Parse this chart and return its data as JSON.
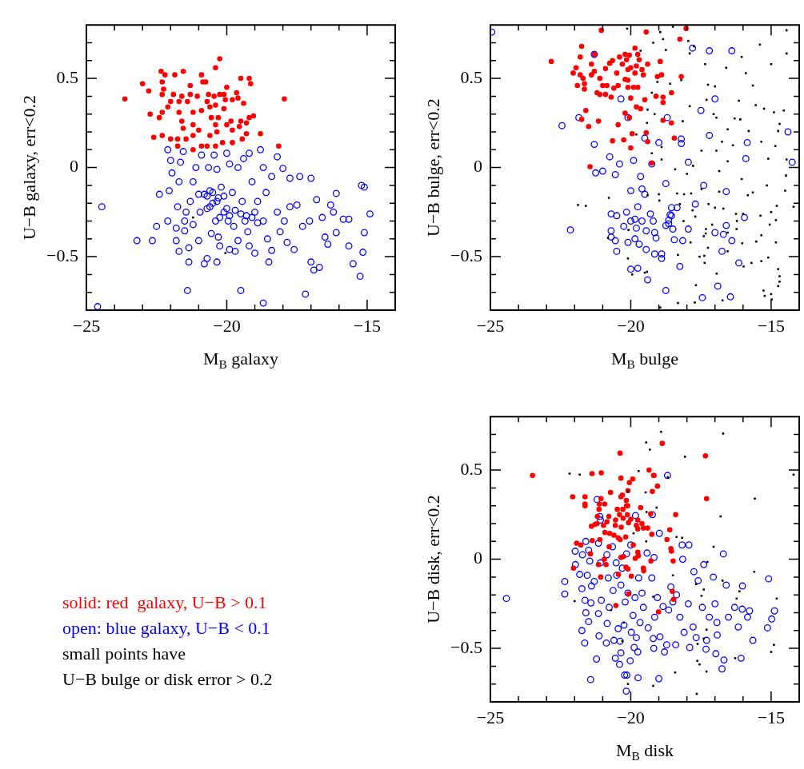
{
  "chart_data": [
    {
      "type": "scatter",
      "xlabel": "M$_{B}$ galaxy",
      "ylabel": "U−B galaxy, err<0.2",
      "xlim": [
        -25,
        -14
      ],
      "ylim": [
        -0.8,
        0.8
      ],
      "xticks": [
        {
          "value": -25,
          "label": "−25"
        },
        {
          "value": -24,
          "label": null
        },
        {
          "value": -23,
          "label": null
        },
        {
          "value": -22,
          "label": null
        },
        {
          "value": -21,
          "label": null
        },
        {
          "value": -20,
          "label": "−20"
        },
        {
          "value": -19,
          "label": null
        },
        {
          "value": -18,
          "label": null
        },
        {
          "value": -17,
          "label": null
        },
        {
          "value": -16,
          "label": null
        },
        {
          "value": -15,
          "label": "−15"
        }
      ],
      "yticks": [
        {
          "value": -0.7,
          "label": null
        },
        {
          "value": -0.6,
          "label": null
        },
        {
          "value": -0.5,
          "label": "−0.5"
        },
        {
          "value": -0.4,
          "label": null
        },
        {
          "value": -0.3,
          "label": null
        },
        {
          "value": -0.2,
          "label": null
        },
        {
          "value": -0.1,
          "label": null
        },
        {
          "value": 0,
          "label": "0"
        },
        {
          "value": 0.1,
          "label": null
        },
        {
          "value": 0.2,
          "label": null
        },
        {
          "value": 0.3,
          "label": null
        },
        {
          "value": 0.4,
          "label": null
        },
        {
          "value": 0.5,
          "label": "0.5"
        },
        {
          "value": 0.6,
          "label": null
        },
        {
          "value": 0.7,
          "label": null
        }
      ],
      "grid": false,
      "legend": false,
      "series": [
        {
          "color": "#ff0000",
          "marker": "circle",
          "x": [
            -23.63,
            -23.0,
            -22.78,
            -22.34,
            -22.2,
            -22.3,
            -22.25,
            -22.3,
            -22.73,
            -22.6,
            -22.3,
            -22.4,
            -22.3,
            -22.1,
            -22.0,
            -22.0,
            -21.85,
            -21.9,
            -21.75,
            -21.75,
            -21.55,
            -21.6,
            -21.7,
            -21.7,
            -21.6,
            -21.55,
            -21.45,
            -21.3,
            -21.3,
            -21.4,
            -21.2,
            -21.2,
            -21.2,
            -21.2,
            -20.9,
            -20.85,
            -21.05,
            -20.9,
            -21.0,
            -20.9,
            -20.75,
            -20.65,
            -20.7,
            -20.6,
            -20.55,
            -20.6,
            -20.7,
            -20.45,
            -20.4,
            -20.4,
            -20.25,
            -20.25,
            -20.3,
            -20.4,
            -20.35,
            -20.4,
            -20.1,
            -20.1,
            -20.0,
            -20.05,
            -20.0,
            -20.15,
            -19.85,
            -19.8,
            -19.8,
            -19.8,
            -19.65,
            -19.6,
            -19.55,
            -19.5,
            -19.5,
            -19.4,
            -19.45,
            -19.3,
            -19.3,
            -19.2,
            -19.2,
            -19.15,
            -19.05,
            -18.8,
            -17.95,
            -18.15
          ],
          "values": [
            0.385,
            0.47,
            0.43,
            0.54,
            0.52,
            0.48,
            0.44,
            0.41,
            0.3,
            0.17,
            0.18,
            0.28,
            0.31,
            0.34,
            0.37,
            0.16,
            0.52,
            0.41,
            0.16,
            0.12,
            0.54,
            0.4,
            0.37,
            0.31,
            0.26,
            0.22,
            0.16,
            0.46,
            0.41,
            0.37,
            0.31,
            0.24,
            0.18,
            0.1,
            0.52,
            0.48,
            0.4,
            0.32,
            0.21,
            0.12,
            0.48,
            0.41,
            0.37,
            0.34,
            0.28,
            0.18,
            0.12,
            0.4,
            0.35,
            0.56,
            0.61,
            0.41,
            0.28,
            0.24,
            0.2,
            0.12,
            0.33,
            0.41,
            0.45,
            0.38,
            0.24,
            0.14,
            0.26,
            0.38,
            0.21,
            0.14,
            0.42,
            0.39,
            0.23,
            0.5,
            0.26,
            0.36,
            0.16,
            0.19,
            0.25,
            0.28,
            0.5,
            0.47,
            0.29,
            0.19,
            0.385,
            0.12
          ]
        },
        {
          "color": "#0000ff",
          "marker": "open circle",
          "x": [
            -24.6,
            -24.45,
            -23.2,
            -22.65,
            -22.5,
            -22.4,
            -22.1,
            -22.1,
            -22.05,
            -22.0,
            -21.95,
            -21.8,
            -21.8,
            -21.7,
            -21.75,
            -21.7,
            -21.65,
            -21.55,
            -21.5,
            -21.5,
            -21.45,
            -21.4,
            -21.35,
            -21.35,
            -21.3,
            -21.2,
            -21.2,
            -21.1,
            -21.0,
            -21.0,
            -20.95,
            -20.9,
            -20.8,
            -20.7,
            -20.7,
            -20.65,
            -20.6,
            -20.55,
            -20.5,
            -20.45,
            -20.35,
            -20.35,
            -20.35,
            -20.3,
            -20.25,
            -20.25,
            -20.2,
            -20.1,
            -20.0,
            -20.0,
            -19.95,
            -19.9,
            -19.9,
            -19.8,
            -19.75,
            -19.7,
            -19.7,
            -19.6,
            -19.6,
            -19.5,
            -19.45,
            -19.4,
            -19.35,
            -19.25,
            -19.2,
            -19.2,
            -19.1,
            -19.0,
            -19.0,
            -18.9,
            -18.8,
            -18.7,
            -18.7,
            -18.7,
            -18.6,
            -18.55,
            -18.5,
            -18.4,
            -18.4,
            -18.2,
            -18.2,
            -18.1,
            -18.0,
            -17.95,
            -17.85,
            -17.75,
            -17.75,
            -17.6,
            -17.5,
            -17.4,
            -17.3,
            -17.2,
            -17.05,
            -17.0,
            -17.0,
            -16.9,
            -16.8,
            -16.7,
            -16.6,
            -16.5,
            -16.4,
            -16.3,
            -16.2,
            -16.1,
            -16.1,
            -15.85,
            -15.65,
            -15.65,
            -15.5,
            -15.25,
            -15.2,
            -15.1,
            -15.15,
            -15.1,
            -14.9,
            -20.8,
            -20.6,
            -20.5,
            -20.3,
            -20.1,
            -19.9,
            -20.7,
            -20.4,
            -19.5,
            -19.3,
            -19.1,
            -18.9
          ],
          "values": [
            -0.78,
            -0.22,
            -0.41,
            -0.41,
            -0.33,
            -0.15,
            -0.3,
            0.1,
            -0.13,
            0.04,
            -0.03,
            -0.34,
            -0.41,
            -0.47,
            -0.22,
            -0.08,
            0.03,
            0.09,
            -0.3,
            -0.355,
            -0.25,
            -0.69,
            -0.53,
            -0.45,
            -0.19,
            -0.08,
            -0.32,
            0.0,
            -0.41,
            -0.15,
            -0.25,
            0.07,
            -0.54,
            -0.16,
            -0.51,
            0.0,
            -0.22,
            -0.37,
            -0.14,
            0.07,
            -0.01,
            -0.19,
            -0.53,
            -0.39,
            -0.28,
            -0.44,
            -0.11,
            -0.16,
            0.08,
            -0.23,
            -0.3,
            -0.46,
            0.02,
            -0.14,
            -0.33,
            -0.24,
            -0.47,
            0.0,
            -0.41,
            -0.69,
            -0.19,
            0.05,
            -0.3,
            -0.36,
            0.08,
            -0.44,
            -0.08,
            -0.48,
            -0.25,
            -0.19,
            0.1,
            -0.76,
            -0.3,
            0.0,
            -0.14,
            -0.4,
            -0.53,
            -0.05,
            -0.465,
            -0.25,
            0.06,
            -0.36,
            -0.005,
            -0.3,
            -0.42,
            -0.22,
            -0.06,
            -0.46,
            -0.21,
            -0.05,
            -0.33,
            -0.71,
            -0.3,
            -0.53,
            -0.06,
            -0.575,
            -0.18,
            -0.56,
            -0.28,
            -0.39,
            -0.43,
            -0.21,
            -0.25,
            -0.145,
            -0.365,
            -0.29,
            -0.29,
            -0.44,
            -0.54,
            -0.61,
            -0.1,
            -0.11,
            -0.475,
            -0.365,
            -0.26,
            -0.15,
            -0.13,
            -0.2,
            -0.17,
            -0.25,
            -0.27,
            -0.23,
            -0.3,
            -0.26,
            -0.27,
            -0.28,
            -0.31
          ]
        },
        {
          "color": "#000000",
          "marker": "square",
          "x": [
            -21.2,
            -20.05
          ],
          "values": [
            -0.28,
            -0.48
          ]
        }
      ]
    },
    {
      "type": "scatter",
      "xlabel": "M$_{B}$ bulge",
      "ylabel": "U−B bulge, err<0.2",
      "xlim": [
        -25,
        -14
      ],
      "ylim": [
        -0.8,
        0.8
      ],
      "xticks": [
        {
          "value": -25,
          "label": "−25"
        },
        {
          "value": -24,
          "label": null
        },
        {
          "value": -23,
          "label": null
        },
        {
          "value": -22,
          "label": null
        },
        {
          "value": -21,
          "label": null
        },
        {
          "value": -20,
          "label": "−20"
        },
        {
          "value": -19,
          "label": null
        },
        {
          "value": -18,
          "label": null
        },
        {
          "value": -17,
          "label": null
        },
        {
          "value": -16,
          "label": null
        },
        {
          "value": -15,
          "label": "−15"
        }
      ],
      "yticks": [
        {
          "value": -0.7,
          "label": null
        },
        {
          "value": -0.6,
          "label": null
        },
        {
          "value": -0.5,
          "label": "−0.5"
        },
        {
          "value": -0.4,
          "label": null
        },
        {
          "value": -0.3,
          "label": null
        },
        {
          "value": -0.2,
          "label": null
        },
        {
          "value": -0.1,
          "label": null
        },
        {
          "value": 0,
          "label": "0"
        },
        {
          "value": 0.1,
          "label": null
        },
        {
          "value": 0.2,
          "label": null
        },
        {
          "value": 0.3,
          "label": null
        },
        {
          "value": 0.4,
          "label": null
        },
        {
          "value": 0.5,
          "label": "0.5"
        },
        {
          "value": 0.6,
          "label": null
        },
        {
          "value": 0.7,
          "label": null
        }
      ],
      "grid": false,
      "legend": false,
      "series": [
        {
          "color": "#ff0000",
          "marker": "circle",
          "x": [
            -22.83,
            -21.05,
            -19.45,
            -18.03,
            -18.25,
            -21.75,
            -21.8,
            -21.3,
            -21.95,
            -22.05,
            -21.8,
            -21.7,
            -21.9,
            -21.65,
            -21.65,
            -21.4,
            -21.3,
            -21.4,
            -21.1,
            -21.2,
            -21.1,
            -20.9,
            -21.0,
            -20.85,
            -20.9,
            -20.75,
            -20.65,
            -20.7,
            -20.6,
            -20.5,
            -20.45,
            -20.4,
            -20.3,
            -20.2,
            -20.2,
            -20.15,
            -20.1,
            -20.05,
            -20.1,
            -20.1,
            -20.0,
            -20.0,
            -19.9,
            -19.85,
            -19.85,
            -19.8,
            -19.75,
            -19.75,
            -19.7,
            -19.6,
            -19.55,
            -19.4,
            -19.5,
            -19.8,
            -19.65,
            -19.1,
            -19.05,
            -18.95,
            -18.9,
            -18.85,
            -18.85,
            -18.55,
            -18.2,
            -20.2,
            -20.05,
            -21.6,
            -21.75,
            -21.5,
            -21.15,
            -20.45,
            -18.85,
            -18.55,
            -19.45,
            -19.95,
            -19.4,
            -18.45,
            -20.65,
            -20.25,
            -20.0,
            -19.25,
            -21.45
          ],
          "values": [
            0.595,
            0.77,
            0.76,
            0.78,
            0.72,
            0.68,
            0.62,
            0.635,
            0.56,
            0.53,
            0.52,
            0.5,
            0.46,
            0.47,
            0.44,
            0.58,
            0.54,
            0.52,
            0.5,
            0.42,
            0.41,
            0.41,
            0.46,
            0.46,
            0.555,
            0.585,
            0.6,
            0.395,
            0.445,
            0.53,
            0.46,
            0.62,
            0.58,
            0.635,
            0.495,
            0.605,
            0.55,
            0.63,
            0.49,
            0.45,
            0.39,
            0.56,
            0.45,
            0.53,
            0.67,
            0.57,
            0.45,
            0.635,
            0.605,
            0.55,
            0.52,
            0.58,
            0.38,
            0.34,
            0.33,
            0.4,
            0.51,
            0.595,
            0.52,
            0.395,
            0.365,
            0.42,
            0.51,
            0.305,
            0.28,
            0.32,
            0.27,
            0.23,
            0.26,
            0.24,
            0.265,
            0.25,
            0.195,
            0.19,
            0.145,
            0.165,
            0.15,
            0.155,
            0.11,
            0.025,
            0.005
          ]
        },
        {
          "color": "#0000ff",
          "marker": "open circle",
          "x": [
            -24.95,
            -22.45,
            -22.15,
            -21.85,
            -21.3,
            -21.3,
            -21.25,
            -21.0,
            -20.75,
            -20.55,
            -20.4,
            -20.35,
            -20.1,
            -19.9,
            -19.65,
            -20.0,
            -19.6,
            -19.5,
            -19.75,
            -20.15,
            -20.7,
            -20.5,
            -20.0,
            -19.85,
            -19.6,
            -19.3,
            -19.2,
            -20.25,
            -19.8,
            -20.7,
            -19.45,
            -19.15,
            -20.7,
            -20.55,
            -20.1,
            -19.85,
            -19.7,
            -19.1,
            -20.5,
            -19.45,
            -19.15,
            -18.9,
            -18.9,
            -20.0,
            -19.75,
            -19.4,
            -18.75,
            -18.25,
            -19.5,
            -19.0,
            -19.25,
            -18.75,
            -18.7,
            -18.55,
            -18.35,
            -18.6,
            -18.55,
            -18.65,
            -18.65,
            -18.75,
            -18.5,
            -18.45,
            -18.2,
            -18.2,
            -18.15,
            -17.95,
            -17.95,
            -17.8,
            -17.7,
            -17.5,
            -17.4,
            -17.45,
            -17.2,
            -17.2,
            -17.0,
            -17.0,
            -16.9,
            -16.75,
            -16.7,
            -16.6,
            -16.6,
            -16.4,
            -16.45,
            -16.4,
            -16.15,
            -15.95,
            -15.9,
            -15.85,
            -14.4,
            -14.25
          ],
          "values": [
            0.76,
            0.235,
            -0.35,
            0.28,
            0.635,
            0.13,
            -0.03,
            -0.02,
            0.06,
            -0.04,
            0.02,
            0.385,
            0.28,
            0.04,
            -0.05,
            -0.13,
            -0.12,
            -0.15,
            -0.22,
            -0.25,
            -0.26,
            -0.27,
            -0.3,
            -0.29,
            -0.3,
            -0.26,
            -0.3,
            -0.33,
            -0.34,
            -0.355,
            -0.355,
            -0.365,
            -0.39,
            -0.41,
            -0.42,
            -0.4,
            -0.43,
            -0.395,
            -0.47,
            -0.46,
            -0.485,
            -0.485,
            -0.51,
            -0.57,
            -0.565,
            -0.63,
            -0.69,
            -0.555,
            0.165,
            0.14,
            0.02,
            -0.09,
            0.28,
            -0.225,
            -0.225,
            -0.265,
            -0.27,
            -0.295,
            -0.315,
            -0.325,
            -0.345,
            -0.405,
            0.16,
            0.135,
            -0.41,
            -0.345,
            0.03,
            0.67,
            -0.205,
            0.32,
            -0.1,
            -0.73,
            0.18,
            0.655,
            0.385,
            -0.365,
            -0.665,
            -0.47,
            -0.375,
            -0.135,
            -0.325,
            -0.41,
            -0.725,
            0.655,
            -0.535,
            -0.28,
            0.05,
            0.14,
            0.2,
            0.03
          ]
        },
        {
          "color": "#000000",
          "marker": "square",
          "x": [
            -20.13,
            -18.95,
            -18.85,
            -19.2,
            -18.75,
            -18.5,
            -17.95,
            -17.75,
            -17.9,
            -19.65,
            -17.35,
            -16.6,
            -16.05,
            -15.4,
            -14.45,
            -14.45,
            -15.0,
            -15.9,
            -15.65,
            -17.0,
            -17.25,
            -18.2,
            -18.6,
            -19.25,
            -19.05,
            -17.9,
            -17.3,
            -16.15,
            -15.55,
            -15.25,
            -14.9,
            -14.55,
            -19.4,
            -19.15,
            -17.05,
            -16.95,
            -16.3,
            -16.1,
            -18.15,
            -16.55,
            -15.8,
            -14.7,
            -14.75,
            -19.42,
            -19.8,
            -16.75,
            -16.36,
            -15.35,
            -14.85,
            -17.48,
            -16.95,
            -18.9,
            -19.25,
            -18.9,
            -18.42,
            -18.0,
            -17.78,
            -16.85,
            -16.55,
            -15.1,
            -14.45,
            -14.47,
            -16.05,
            -15.15,
            -14.5,
            -15.65,
            -15.83,
            -16.85,
            -17.48,
            -18.35,
            -18.1,
            -17.85,
            -19.0,
            -19.4,
            -20.78,
            -21.88,
            -21.6,
            -18.98,
            -18.25,
            -17.8,
            -17.23,
            -17.0,
            -16.7,
            -16.25,
            -16.0,
            -14.8,
            -15.0,
            -15.38,
            -14.83,
            -15.05,
            -16.22,
            -18.12,
            -17.7,
            -17.32,
            -17.1,
            -17.33,
            -17.4,
            -16.55,
            -16.23,
            -15.35,
            -15.53,
            -14.83,
            -16.03,
            -17.87,
            -17.25,
            -16.55,
            -17.55,
            -17.38,
            -18.32,
            -15.1,
            -15.35,
            -15.7,
            -15.98,
            -17.37,
            -16.94,
            -14.75,
            -14.7,
            -14.7,
            -14.75,
            -15.27,
            -15.23,
            -15.0,
            -14.98,
            -17.68,
            -16.73,
            -17.72,
            -18.32,
            -18.95,
            -20.1,
            -19.95,
            -19.5,
            -20.08,
            -20.81,
            -19.42,
            -14.2
          ],
          "values": [
            0.78,
            0.76,
            0.72,
            0.7,
            0.66,
            0.79,
            0.71,
            0.68,
            0.64,
            0.655,
            0.58,
            0.56,
            0.62,
            0.69,
            0.77,
            0.64,
            0.58,
            0.53,
            0.46,
            0.455,
            0.465,
            0.49,
            0.47,
            0.42,
            0.48,
            0.345,
            0.38,
            0.375,
            0.35,
            0.33,
            0.31,
            0.32,
            0.325,
            0.3,
            0.3,
            0.28,
            0.275,
            0.27,
            0.26,
            0.215,
            0.205,
            0.245,
            0.205,
            0.25,
            0.185,
            0.145,
            0.125,
            0.145,
            0.12,
            0.095,
            0.095,
            0.115,
            0.08,
            0.045,
            -0.01,
            -0.035,
            0.01,
            -0.02,
            0.035,
            0.05,
            0.045,
            -0.045,
            -0.065,
            -0.1,
            -0.13,
            -0.14,
            -0.155,
            -0.135,
            -0.12,
            -0.145,
            -0.15,
            -0.145,
            -0.15,
            -0.155,
            -0.17,
            -0.21,
            -0.215,
            -0.185,
            -0.205,
            -0.24,
            -0.205,
            -0.225,
            -0.23,
            -0.26,
            -0.26,
            -0.215,
            -0.25,
            -0.27,
            -0.295,
            -0.32,
            -0.3,
            -0.3,
            -0.275,
            -0.345,
            -0.32,
            -0.37,
            -0.385,
            -0.365,
            -0.345,
            -0.38,
            -0.415,
            -0.42,
            -0.425,
            -0.42,
            -0.45,
            -0.47,
            -0.5,
            -0.495,
            -0.49,
            -0.505,
            -0.525,
            -0.535,
            -0.555,
            -0.535,
            -0.595,
            -0.57,
            -0.61,
            -0.64,
            -0.665,
            -0.69,
            -0.72,
            -0.71,
            -0.74,
            -0.66,
            -0.745,
            -0.757,
            -0.76,
            -0.785,
            -0.51,
            -0.6,
            -0.59,
            -0.35,
            -0.395,
            -0.585,
            -0.22
          ]
        }
      ]
    },
    {
      "type": "other",
      "annotations": [
        "solid: red  galaxy, U−B > 0.1",
        "open: blue galaxy, U−B < 0.1",
        "small points have",
        "U−B bulge or disk error > 0.2"
      ]
    },
    {
      "type": "scatter",
      "xlabel": "M$_{B}$ disk",
      "ylabel": "U−B disk, err<0.2",
      "xlim": [
        -25,
        -14
      ],
      "ylim": [
        -0.8,
        0.8
      ],
      "xticks": [
        {
          "value": -25,
          "label": "−25"
        },
        {
          "value": -24,
          "label": null
        },
        {
          "value": -23,
          "label": null
        },
        {
          "value": -22,
          "label": null
        },
        {
          "value": -21,
          "label": null
        },
        {
          "value": -20,
          "label": "−20"
        },
        {
          "value": -19,
          "label": null
        },
        {
          "value": -18,
          "label": null
        },
        {
          "value": -17,
          "label": null
        },
        {
          "value": -16,
          "label": null
        },
        {
          "value": -15,
          "label": "−15"
        }
      ],
      "yticks": [
        {
          "value": -0.7,
          "label": null
        },
        {
          "value": -0.6,
          "label": null
        },
        {
          "value": -0.5,
          "label": "−0.5"
        },
        {
          "value": -0.4,
          "label": null
        },
        {
          "value": -0.3,
          "label": null
        },
        {
          "value": -0.2,
          "label": null
        },
        {
          "value": -0.1,
          "label": null
        },
        {
          "value": 0,
          "label": "0"
        },
        {
          "value": 0.1,
          "label": null
        },
        {
          "value": 0.2,
          "label": null
        },
        {
          "value": 0.3,
          "label": null
        },
        {
          "value": 0.4,
          "label": null
        },
        {
          "value": 0.5,
          "label": "0.5"
        },
        {
          "value": 0.6,
          "label": null
        },
        {
          "value": 0.7,
          "label": null
        }
      ],
      "grid": false,
      "legend": false,
      "series": [
        {
          "color": "#ff0000",
          "marker": "circle",
          "x": [
            -23.5,
            -22.07,
            -21.63,
            -21.63,
            -21.63,
            -21.38,
            -21.05,
            -21.06,
            -21.12,
            -20.93,
            -21.13,
            -20.72,
            -20.38,
            -20.35,
            -20.35,
            -20.3,
            -20.16,
            -20.15,
            -20.05,
            -19.93,
            -20.48,
            -20.28,
            -20.11,
            -20.1,
            -19.35,
            -19.19,
            -19.17,
            -18.88,
            -19.05,
            -19.23,
            -19.65,
            -19.29,
            -18.4,
            -17.34,
            -17.3,
            -21.19,
            -20.78,
            -20.4,
            -20.12,
            -20.0,
            -19.75,
            -20.27,
            -20.54,
            -20.85,
            -21.2,
            -21.4,
            -21.27,
            -20.97,
            -20.55,
            -20.34,
            -20.08,
            -19.8,
            -19.6,
            -19.55,
            -19.4,
            -19.75,
            -20.92,
            -20.75,
            -20.6,
            -20.45,
            -20.38,
            -20.18,
            -19.91,
            -19.25,
            -18.61,
            -18.71,
            -18.57,
            -21.1,
            -21.37,
            -21.93,
            -21.78,
            -20.77,
            -21.44,
            -19.75,
            -19.73,
            -19.84,
            -19.28,
            -18.55,
            -18.49,
            -20.94,
            -20.35,
            -20.26,
            -21.15,
            -20.88,
            -20.17,
            -20.1,
            -19.55,
            -19.54,
            -22.04,
            -21.07,
            -20.44,
            -19.98,
            -20.08,
            -20.53,
            -19.01,
            -18.52,
            -18.47
          ],
          "values": [
            0.47,
            0.35,
            0.35,
            0.31,
            0.3,
            0.48,
            0.485,
            0.34,
            0.31,
            0.31,
            0.28,
            0.375,
            0.595,
            0.455,
            0.35,
            0.36,
            0.33,
            0.3,
            0.43,
            0.45,
            0.28,
            0.28,
            0.3,
            0.385,
            0.5,
            0.47,
            0.47,
            0.65,
            0.41,
            0.38,
            0.29,
            0.255,
            0.25,
            0.58,
            0.34,
            0.24,
            0.24,
            0.25,
            0.25,
            0.225,
            0.22,
            0.23,
            0.22,
            0.21,
            0.2,
            0.185,
            0.195,
            0.19,
            0.19,
            0.18,
            0.205,
            0.19,
            0.2,
            0.175,
            0.175,
            0.17,
            0.15,
            0.145,
            0.135,
            0.12,
            0.11,
            0.125,
            0.08,
            0.14,
            0.165,
            0.11,
            0.06,
            0.11,
            0.105,
            0.09,
            0.08,
            0.07,
            0.03,
            0.04,
            0.02,
            0.005,
            -0.01,
            0.045,
            -0.01,
            0.0,
            0.01,
            0.015,
            -0.03,
            -0.03,
            -0.045,
            -0.055,
            -0.05,
            -0.065,
            -0.05,
            -0.1,
            -0.085,
            -0.095,
            -0.195,
            -0.26,
            -0.295,
            -0.18,
            -0.225
          ]
        },
        {
          "color": "#0000ff",
          "marker": "open circle",
          "x": [
            -24.43,
            -22.35,
            -22.35,
            -21.98,
            -21.97,
            -21.82,
            -21.74,
            -21.74,
            -21.72,
            -21.64,
            -21.63,
            -21.6,
            -21.55,
            -21.6,
            -21.5,
            -21.46,
            -21.5,
            -21.42,
            -21.43,
            -21.4,
            -21.3,
            -21.2,
            -21.15,
            -21.15,
            -21.13,
            -21.22,
            -21.1,
            -21.08,
            -21.08,
            -21.05,
            -20.87,
            -20.84,
            -20.85,
            -20.8,
            -20.77,
            -20.65,
            -20.63,
            -20.6,
            -20.55,
            -20.52,
            -20.5,
            -20.45,
            -20.4,
            -20.35,
            -20.38,
            -20.35,
            -20.3,
            -20.24,
            -20.2,
            -20.16,
            -20.22,
            -20.14,
            -20.15,
            -20.1,
            -20.02,
            -20.0,
            -19.98,
            -19.92,
            -19.88,
            -19.85,
            -19.83,
            -19.8,
            -19.74,
            -19.72,
            -19.75,
            -19.67,
            -19.6,
            -19.55,
            -19.42,
            -19.38,
            -19.25,
            -19.23,
            -19.2,
            -19.17,
            -19.18,
            -19.15,
            -19.05,
            -19.0,
            -18.98,
            -18.96,
            -18.85,
            -18.8,
            -18.72,
            -18.69,
            -18.65,
            -18.57,
            -18.5,
            -18.4,
            -18.37,
            -18.25,
            -18.17,
            -18.15,
            -18.1,
            -17.95,
            -17.93,
            -17.9,
            -17.78,
            -17.75,
            -17.6,
            -17.67,
            -17.45,
            -17.4,
            -17.32,
            -17.3,
            -17.2,
            -17.06,
            -17.0,
            -16.97,
            -16.93,
            -16.92,
            -16.75,
            -16.7,
            -16.68,
            -16.6,
            -16.52,
            -16.3,
            -16.17,
            -16.07,
            -16.02,
            -16.03,
            -15.84,
            -15.77,
            -15.65,
            -15.13,
            -15.09,
            -14.98,
            -14.88
          ],
          "values": [
            -0.22,
            -0.125,
            -0.195,
            0.045,
            -0.03,
            -0.085,
            -0.165,
            -0.4,
            0.025,
            -0.47,
            -0.23,
            -0.3,
            -0.09,
            0.1,
            0.05,
            -0.01,
            -0.35,
            -0.245,
            -0.675,
            -0.15,
            -0.125,
            0.335,
            0.09,
            -0.305,
            -0.43,
            -0.56,
            0.24,
            0.22,
            -0.02,
            -0.23,
            -0.47,
            -0.36,
            0.025,
            -0.105,
            -0.27,
            0.07,
            -0.175,
            -0.455,
            -0.555,
            -0.02,
            -0.09,
            -0.39,
            -0.59,
            -0.525,
            -0.46,
            -0.145,
            -0.05,
            -0.37,
            -0.24,
            -0.74,
            -0.65,
            -0.65,
            0.03,
            -0.19,
            -0.57,
            0.08,
            -0.41,
            -0.315,
            -0.495,
            -0.215,
            0.245,
            -0.44,
            -0.665,
            -0.105,
            -0.52,
            -0.355,
            -0.19,
            -0.27,
            0.035,
            -0.385,
            -0.105,
            0.25,
            -0.445,
            0.01,
            -0.5,
            -0.325,
            -0.215,
            -0.67,
            0.145,
            -0.435,
            -0.265,
            -0.52,
            -0.48,
            0.47,
            -0.285,
            -0.155,
            -0.24,
            -0.48,
            -0.2,
            -0.325,
            0.08,
            0.0,
            -0.41,
            -0.25,
            0.08,
            -0.495,
            -0.38,
            -0.07,
            -0.12,
            -0.44,
            -0.27,
            -0.03,
            -0.505,
            -0.455,
            -0.325,
            -0.1,
            -0.25,
            -0.53,
            -0.355,
            -0.425,
            -0.615,
            0.03,
            -0.565,
            -0.145,
            -0.325,
            -0.27,
            -0.38,
            -0.555,
            -0.15,
            -0.28,
            -0.325,
            -0.29,
            -0.455,
            -0.385,
            -0.11,
            -0.335,
            -0.29
          ]
        },
        {
          "color": "#000000",
          "marker": "square",
          "x": [
            -18.92,
            -16.71,
            -19.45,
            -19.32,
            -18.07,
            -22.18,
            -21.82,
            -19.72,
            -18.68,
            -20.1,
            -19.47,
            -19.08,
            -19.44,
            -15.58,
            -16.8,
            -18.37,
            -18.17,
            -19.9,
            -19.45,
            -17.05,
            -17.27,
            -15.6,
            -16.73,
            -18.5,
            -17.67,
            -17.4,
            -16.13,
            -16.23,
            -14.8,
            -14.2,
            -22.0,
            -20.7,
            -19.2,
            -17.48,
            -17.3,
            -17.62,
            -17.4,
            -14.9,
            -15.0,
            -16.28,
            -17.63,
            -17.55,
            -17.3,
            -18.42,
            -20.1,
            -19.2,
            -17.65,
            -20.3,
            -20.25
          ],
          "values": [
            0.715,
            0.705,
            0.655,
            0.615,
            0.575,
            0.48,
            0.475,
            0.495,
            0.46,
            0.38,
            0.375,
            0.29,
            0.265,
            0.34,
            0.24,
            0.125,
            0.12,
            0.145,
            0.1,
            0.07,
            -0.015,
            -0.07,
            -0.12,
            -0.09,
            -0.14,
            -0.17,
            -0.18,
            -0.22,
            -0.22,
            0.475,
            -0.235,
            -0.285,
            -0.21,
            -0.205,
            -0.395,
            -0.475,
            -0.445,
            -0.48,
            -0.52,
            -0.555,
            -0.57,
            -0.59,
            -0.63,
            -0.635,
            -0.7,
            -0.71,
            -0.755,
            -0.46,
            -0.355
          ]
        }
      ]
    }
  ]
}
